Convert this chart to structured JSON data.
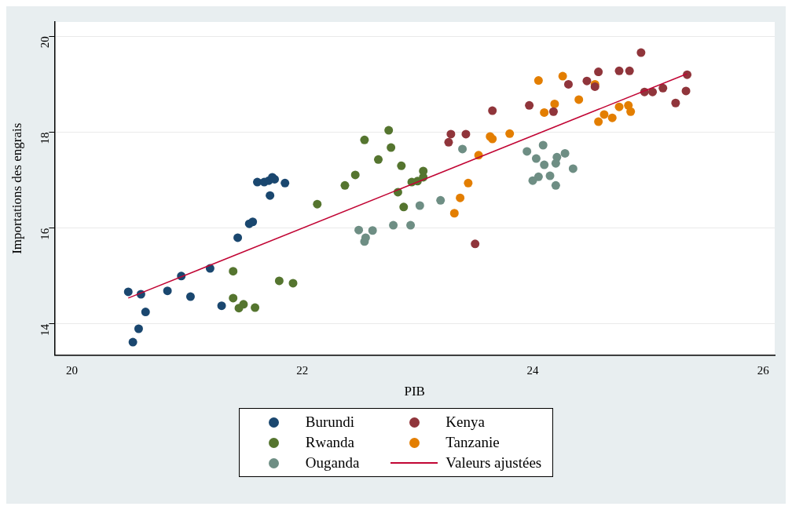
{
  "chart_data": {
    "type": "scatter",
    "xlabel": "PIB",
    "ylabel": "Importations des engrais",
    "xlim": [
      19.85,
      26.1
    ],
    "ylim": [
      13.35,
      20.3
    ],
    "xticks": [
      20,
      22,
      24,
      26
    ],
    "yticks": [
      14,
      16,
      18,
      20
    ],
    "grid": "y",
    "legend": "bottom",
    "marker": "circle",
    "series": [
      {
        "name": "Burundi",
        "color": "#1a476f",
        "x": [
          20.49,
          20.6,
          20.64,
          20.58,
          20.53,
          20.83,
          20.95,
          21.03,
          21.2,
          21.3,
          21.44,
          21.54,
          21.57,
          21.61,
          21.67,
          21.71,
          21.74,
          21.76,
          21.72,
          21.85
        ],
        "values": [
          14.67,
          14.62,
          14.25,
          13.9,
          13.62,
          14.69,
          15.0,
          14.57,
          15.16,
          14.38,
          15.8,
          16.09,
          16.13,
          16.96,
          16.96,
          16.99,
          17.06,
          17.02,
          16.68,
          16.94
        ]
      },
      {
        "name": "Kenya",
        "color": "#90353b",
        "x": [
          23.27,
          23.29,
          23.42,
          23.65,
          23.97,
          24.18,
          24.31,
          24.47,
          24.54,
          24.57,
          24.75,
          24.84,
          24.94,
          24.97,
          25.04,
          25.13,
          25.24,
          25.33,
          25.34,
          23.5
        ],
        "values": [
          17.79,
          17.96,
          17.96,
          18.45,
          18.56,
          18.43,
          19.0,
          19.07,
          18.95,
          19.26,
          19.28,
          19.28,
          19.66,
          18.84,
          18.84,
          18.92,
          18.61,
          18.86,
          19.2,
          15.67
        ]
      },
      {
        "name": "Rwanda",
        "color": "#55752f",
        "x": [
          21.4,
          21.4,
          21.45,
          21.49,
          21.59,
          21.8,
          21.92,
          22.13,
          22.37,
          22.46,
          22.54,
          22.66,
          22.75,
          22.77,
          22.86,
          22.83,
          22.88,
          22.95,
          23.0,
          23.05,
          23.05
        ],
        "values": [
          15.1,
          14.54,
          14.33,
          14.41,
          14.34,
          14.9,
          14.85,
          16.5,
          16.89,
          17.11,
          17.84,
          17.43,
          18.04,
          17.68,
          17.3,
          16.75,
          16.44,
          16.96,
          16.98,
          17.06,
          17.19
        ]
      },
      {
        "name": "Tanzanie",
        "color": "#e37e00",
        "x": [
          23.32,
          23.37,
          23.44,
          23.53,
          23.63,
          23.65,
          23.8,
          24.05,
          24.1,
          24.19,
          24.26,
          24.4,
          24.54,
          24.57,
          24.62,
          24.69,
          24.75,
          24.83,
          24.85
        ],
        "values": [
          16.31,
          16.63,
          16.94,
          17.52,
          17.91,
          17.86,
          17.97,
          19.08,
          18.41,
          18.59,
          19.17,
          18.68,
          19.0,
          18.22,
          18.37,
          18.3,
          18.53,
          18.56,
          18.43
        ]
      },
      {
        "name": "Ouganda",
        "color": "#6e8e84",
        "x": [
          22.49,
          22.61,
          22.54,
          22.55,
          22.79,
          22.94,
          23.02,
          23.2,
          23.39,
          23.95,
          24.09,
          24.03,
          24.1,
          24.21,
          24.28,
          24.2,
          24.35,
          24.15,
          24.05,
          24.0,
          24.2
        ],
        "values": [
          15.96,
          15.95,
          15.72,
          15.8,
          16.06,
          16.06,
          16.47,
          16.58,
          17.65,
          17.6,
          17.73,
          17.45,
          17.32,
          17.48,
          17.56,
          17.35,
          17.24,
          17.09,
          17.07,
          16.99,
          16.89
        ]
      },
      {
        "name": "Valeurs ajustées",
        "type": "line",
        "color": "#c10534",
        "marker": "none",
        "x": [
          20.49,
          25.34
        ],
        "values": [
          14.54,
          19.22
        ]
      }
    ]
  }
}
